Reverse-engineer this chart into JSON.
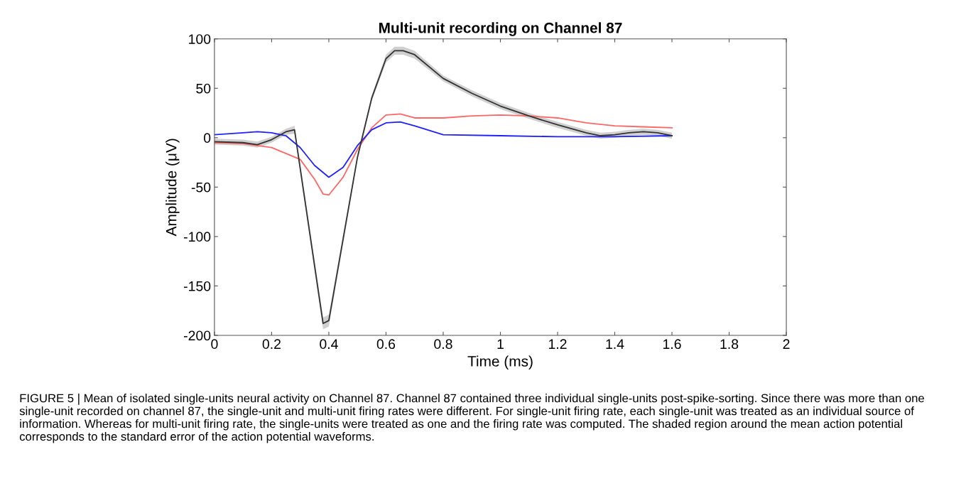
{
  "chart_data": {
    "type": "line",
    "title": "Multi-unit recording on Channel 87",
    "xlabel": "Time (ms)",
    "ylabel": "Amplitude (μV)",
    "xlim": [
      0,
      2
    ],
    "xticks": [
      0,
      0.2,
      0.4,
      0.6,
      0.8,
      1,
      1.2,
      1.4,
      1.6,
      1.8,
      2
    ],
    "ylim": [
      -200,
      100
    ],
    "yticks": [
      -200,
      -150,
      -100,
      -50,
      0,
      50,
      100
    ],
    "grid": false,
    "series": [
      {
        "color": "#ff6666",
        "x": [
          0,
          0.1,
          0.2,
          0.3,
          0.35,
          0.38,
          0.4,
          0.45,
          0.5,
          0.55,
          0.6,
          0.65,
          0.7,
          0.8,
          0.9,
          1.0,
          1.1,
          1.2,
          1.3,
          1.4,
          1.5,
          1.6
        ],
        "values": [
          -5,
          -6,
          -10,
          -22,
          -42,
          -57,
          -58,
          -40,
          -12,
          10,
          23,
          24,
          20,
          20,
          22,
          23,
          22,
          20,
          15,
          12,
          11,
          10
        ]
      },
      {
        "color": "#2020ff",
        "x": [
          0,
          0.1,
          0.15,
          0.2,
          0.25,
          0.3,
          0.35,
          0.4,
          0.45,
          0.5,
          0.55,
          0.6,
          0.65,
          0.7,
          0.8,
          1.0,
          1.2,
          1.4,
          1.6
        ],
        "values": [
          3,
          5,
          6,
          5,
          2,
          -10,
          -28,
          -40,
          -30,
          -8,
          8,
          15,
          16,
          12,
          3,
          2,
          1,
          1,
          2
        ]
      },
      {
        "color": "#333333",
        "x": [
          0,
          0.1,
          0.15,
          0.2,
          0.25,
          0.28,
          0.38,
          0.4,
          0.5,
          0.55,
          0.6,
          0.63,
          0.66,
          0.7,
          0.8,
          0.9,
          1.0,
          1.1,
          1.2,
          1.3,
          1.35,
          1.4,
          1.45,
          1.5,
          1.55,
          1.6
        ],
        "values": [
          -4,
          -5,
          -7,
          -2,
          6,
          8,
          -188,
          -185,
          -20,
          40,
          80,
          88,
          88,
          84,
          60,
          45,
          32,
          22,
          13,
          5,
          2,
          3,
          5,
          6,
          5,
          2
        ],
        "lower": [
          -7,
          -8,
          -10,
          -5,
          3,
          4,
          -194,
          -191,
          -23,
          37,
          76,
          84,
          84,
          80,
          57,
          42,
          29,
          19,
          10,
          2,
          -1,
          0,
          2,
          3,
          2,
          -1
        ],
        "upper": [
          -1,
          -2,
          -4,
          1,
          9,
          12,
          -182,
          -179,
          -17,
          43,
          84,
          92,
          92,
          88,
          63,
          48,
          35,
          25,
          16,
          8,
          5,
          6,
          8,
          9,
          8,
          5
        ]
      }
    ],
    "annotations": [
      "FIGURE 5 | Mean of isolated single-units neural activity on Channel 87. Channel 87 contained three individual single-units post-spike-sorting. Since there was more than one single-unit recorded on channel 87, the single-unit and multi-unit firing rates were different. For single-unit firing rate, each single-unit was treated as an individual source of information. Whereas for multi-unit firing rate, the single-units were treated as one and the firing rate was computed. The shaded region around the mean action potential corresponds to the standard error of the action potential waveforms."
    ]
  }
}
